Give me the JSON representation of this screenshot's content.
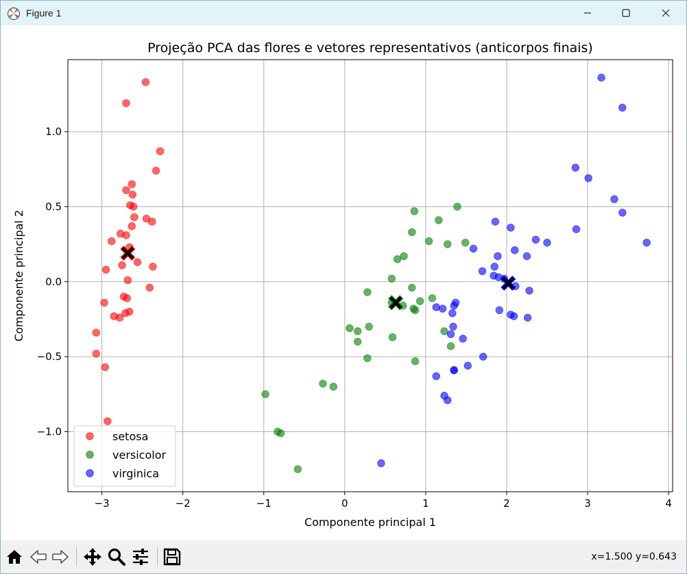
{
  "window": {
    "title": "Figure 1",
    "icons": {
      "app": "matplotlib-figure-icon",
      "minimize": "minimize-icon",
      "maximize": "maximize-icon",
      "close": "close-icon"
    }
  },
  "toolbar": {
    "buttons": [
      "home-icon",
      "back-arrow-icon",
      "forward-arrow-icon",
      "pan-move-icon",
      "zoom-magnifier-icon",
      "subplots-sliders-icon",
      "save-floppy-icon"
    ],
    "coords": "x=1.500 y=0.643"
  },
  "chart_data": {
    "type": "scatter",
    "title": "Projeção PCA das flores e vetores representativos (anticorpos finais)",
    "xlabel": "Componente principal 1",
    "ylabel": "Componente principal 2",
    "xlim": [
      -3.42,
      4.05
    ],
    "ylim": [
      -1.4,
      1.48
    ],
    "xticks": [
      -3,
      -2,
      -1,
      0,
      1,
      2,
      3,
      4
    ],
    "xtick_labels": [
      "−3",
      "−2",
      "−1",
      "0",
      "1",
      "2",
      "3",
      "4"
    ],
    "yticks": [
      -1.0,
      -0.5,
      0.0,
      0.5,
      1.0
    ],
    "ytick_labels": [
      "−1.0",
      "−0.5",
      "0.0",
      "0.5",
      "1.0"
    ],
    "grid": true,
    "legend": {
      "position": "lower-left",
      "entries": [
        "setosa",
        "versicolor",
        "virginica"
      ]
    },
    "series": [
      {
        "name": "setosa",
        "color": "#ff0000",
        "alpha": 0.6,
        "points": [
          [
            -2.46,
            1.33
          ],
          [
            -2.7,
            1.19
          ],
          [
            -2.28,
            0.87
          ],
          [
            -2.33,
            0.74
          ],
          [
            -2.63,
            0.65
          ],
          [
            -2.7,
            0.61
          ],
          [
            -2.65,
            0.51
          ],
          [
            -2.61,
            0.5
          ],
          [
            -2.62,
            0.58
          ],
          [
            -2.45,
            0.42
          ],
          [
            -2.6,
            0.43
          ],
          [
            -2.38,
            0.4
          ],
          [
            -2.63,
            0.37
          ],
          [
            -2.77,
            0.32
          ],
          [
            -2.7,
            0.31
          ],
          [
            -2.88,
            0.27
          ],
          [
            -2.66,
            0.23
          ],
          [
            -2.56,
            0.13
          ],
          [
            -2.75,
            0.11
          ],
          [
            -2.37,
            0.1
          ],
          [
            -2.95,
            0.08
          ],
          [
            -2.68,
            0.01
          ],
          [
            -2.41,
            -0.04
          ],
          [
            -2.73,
            -0.1
          ],
          [
            -2.69,
            -0.11
          ],
          [
            -2.97,
            -0.14
          ],
          [
            -2.66,
            -0.2
          ],
          [
            -2.71,
            -0.21
          ],
          [
            -2.85,
            -0.23
          ],
          [
            -2.78,
            -0.24
          ],
          [
            -3.07,
            -0.34
          ],
          [
            -3.07,
            -0.48
          ],
          [
            -2.96,
            -0.57
          ],
          [
            -2.93,
            -0.93
          ]
        ]
      },
      {
        "name": "versicolor",
        "color": "#008000",
        "alpha": 0.6,
        "points": [
          [
            1.39,
            0.5
          ],
          [
            0.86,
            0.47
          ],
          [
            1.16,
            0.41
          ],
          [
            0.83,
            0.33
          ],
          [
            1.04,
            0.27
          ],
          [
            1.49,
            0.26
          ],
          [
            1.27,
            0.25
          ],
          [
            0.73,
            0.17
          ],
          [
            0.65,
            0.15
          ],
          [
            0.58,
            0.02
          ],
          [
            0.83,
            -0.04
          ],
          [
            0.28,
            -0.07
          ],
          [
            1.08,
            -0.11
          ],
          [
            0.93,
            -0.13
          ],
          [
            0.58,
            -0.14
          ],
          [
            0.72,
            -0.16
          ],
          [
            0.85,
            -0.18
          ],
          [
            0.87,
            -0.19
          ],
          [
            1.23,
            -0.33
          ],
          [
            0.06,
            -0.31
          ],
          [
            0.16,
            -0.33
          ],
          [
            0.3,
            -0.3
          ],
          [
            0.59,
            -0.37
          ],
          [
            0.16,
            -0.4
          ],
          [
            1.31,
            -0.43
          ],
          [
            0.28,
            -0.51
          ],
          [
            0.87,
            -0.53
          ],
          [
            -0.27,
            -0.68
          ],
          [
            -0.14,
            -0.7
          ],
          [
            -0.98,
            -0.75
          ],
          [
            -0.83,
            -1.0
          ],
          [
            -0.79,
            -1.01
          ],
          [
            -0.58,
            -1.25
          ]
        ]
      },
      {
        "name": "virginica",
        "color": "#0000ff",
        "alpha": 0.6,
        "points": [
          [
            3.17,
            1.36
          ],
          [
            3.43,
            1.16
          ],
          [
            2.85,
            0.76
          ],
          [
            3.01,
            0.69
          ],
          [
            3.33,
            0.55
          ],
          [
            3.43,
            0.46
          ],
          [
            1.86,
            0.4
          ],
          [
            2.05,
            0.36
          ],
          [
            2.86,
            0.35
          ],
          [
            2.36,
            0.28
          ],
          [
            2.5,
            0.26
          ],
          [
            3.73,
            0.26
          ],
          [
            1.59,
            0.22
          ],
          [
            2.1,
            0.21
          ],
          [
            1.89,
            0.17
          ],
          [
            2.25,
            0.17
          ],
          [
            1.85,
            0.1
          ],
          [
            1.7,
            0.07
          ],
          [
            1.84,
            0.04
          ],
          [
            1.9,
            0.03
          ],
          [
            1.97,
            0.02
          ],
          [
            2.11,
            -0.03
          ],
          [
            2.28,
            -0.06
          ],
          [
            1.37,
            -0.14
          ],
          [
            1.35,
            -0.16
          ],
          [
            1.13,
            -0.17
          ],
          [
            1.21,
            -0.18
          ],
          [
            1.91,
            -0.19
          ],
          [
            1.33,
            -0.21
          ],
          [
            2.05,
            -0.22
          ],
          [
            2.09,
            -0.23
          ],
          [
            2.26,
            -0.24
          ],
          [
            1.34,
            -0.3
          ],
          [
            1.31,
            -0.35
          ],
          [
            1.46,
            -0.38
          ],
          [
            1.71,
            -0.5
          ],
          [
            1.52,
            -0.56
          ],
          [
            1.35,
            -0.59
          ],
          [
            1.35,
            -0.59
          ],
          [
            1.13,
            -0.63
          ],
          [
            1.23,
            -0.76
          ],
          [
            1.27,
            -0.79
          ],
          [
            0.45,
            -1.21
          ]
        ]
      }
    ],
    "representatives": [
      {
        "series": "setosa",
        "x": -2.68,
        "y": 0.19,
        "marker": "X",
        "color": "#ff0000"
      },
      {
        "series": "versicolor",
        "x": 0.63,
        "y": -0.14,
        "marker": "X",
        "color": "#008000"
      },
      {
        "series": "virginica",
        "x": 2.02,
        "y": -0.01,
        "marker": "X",
        "color": "#0000ff"
      }
    ]
  }
}
